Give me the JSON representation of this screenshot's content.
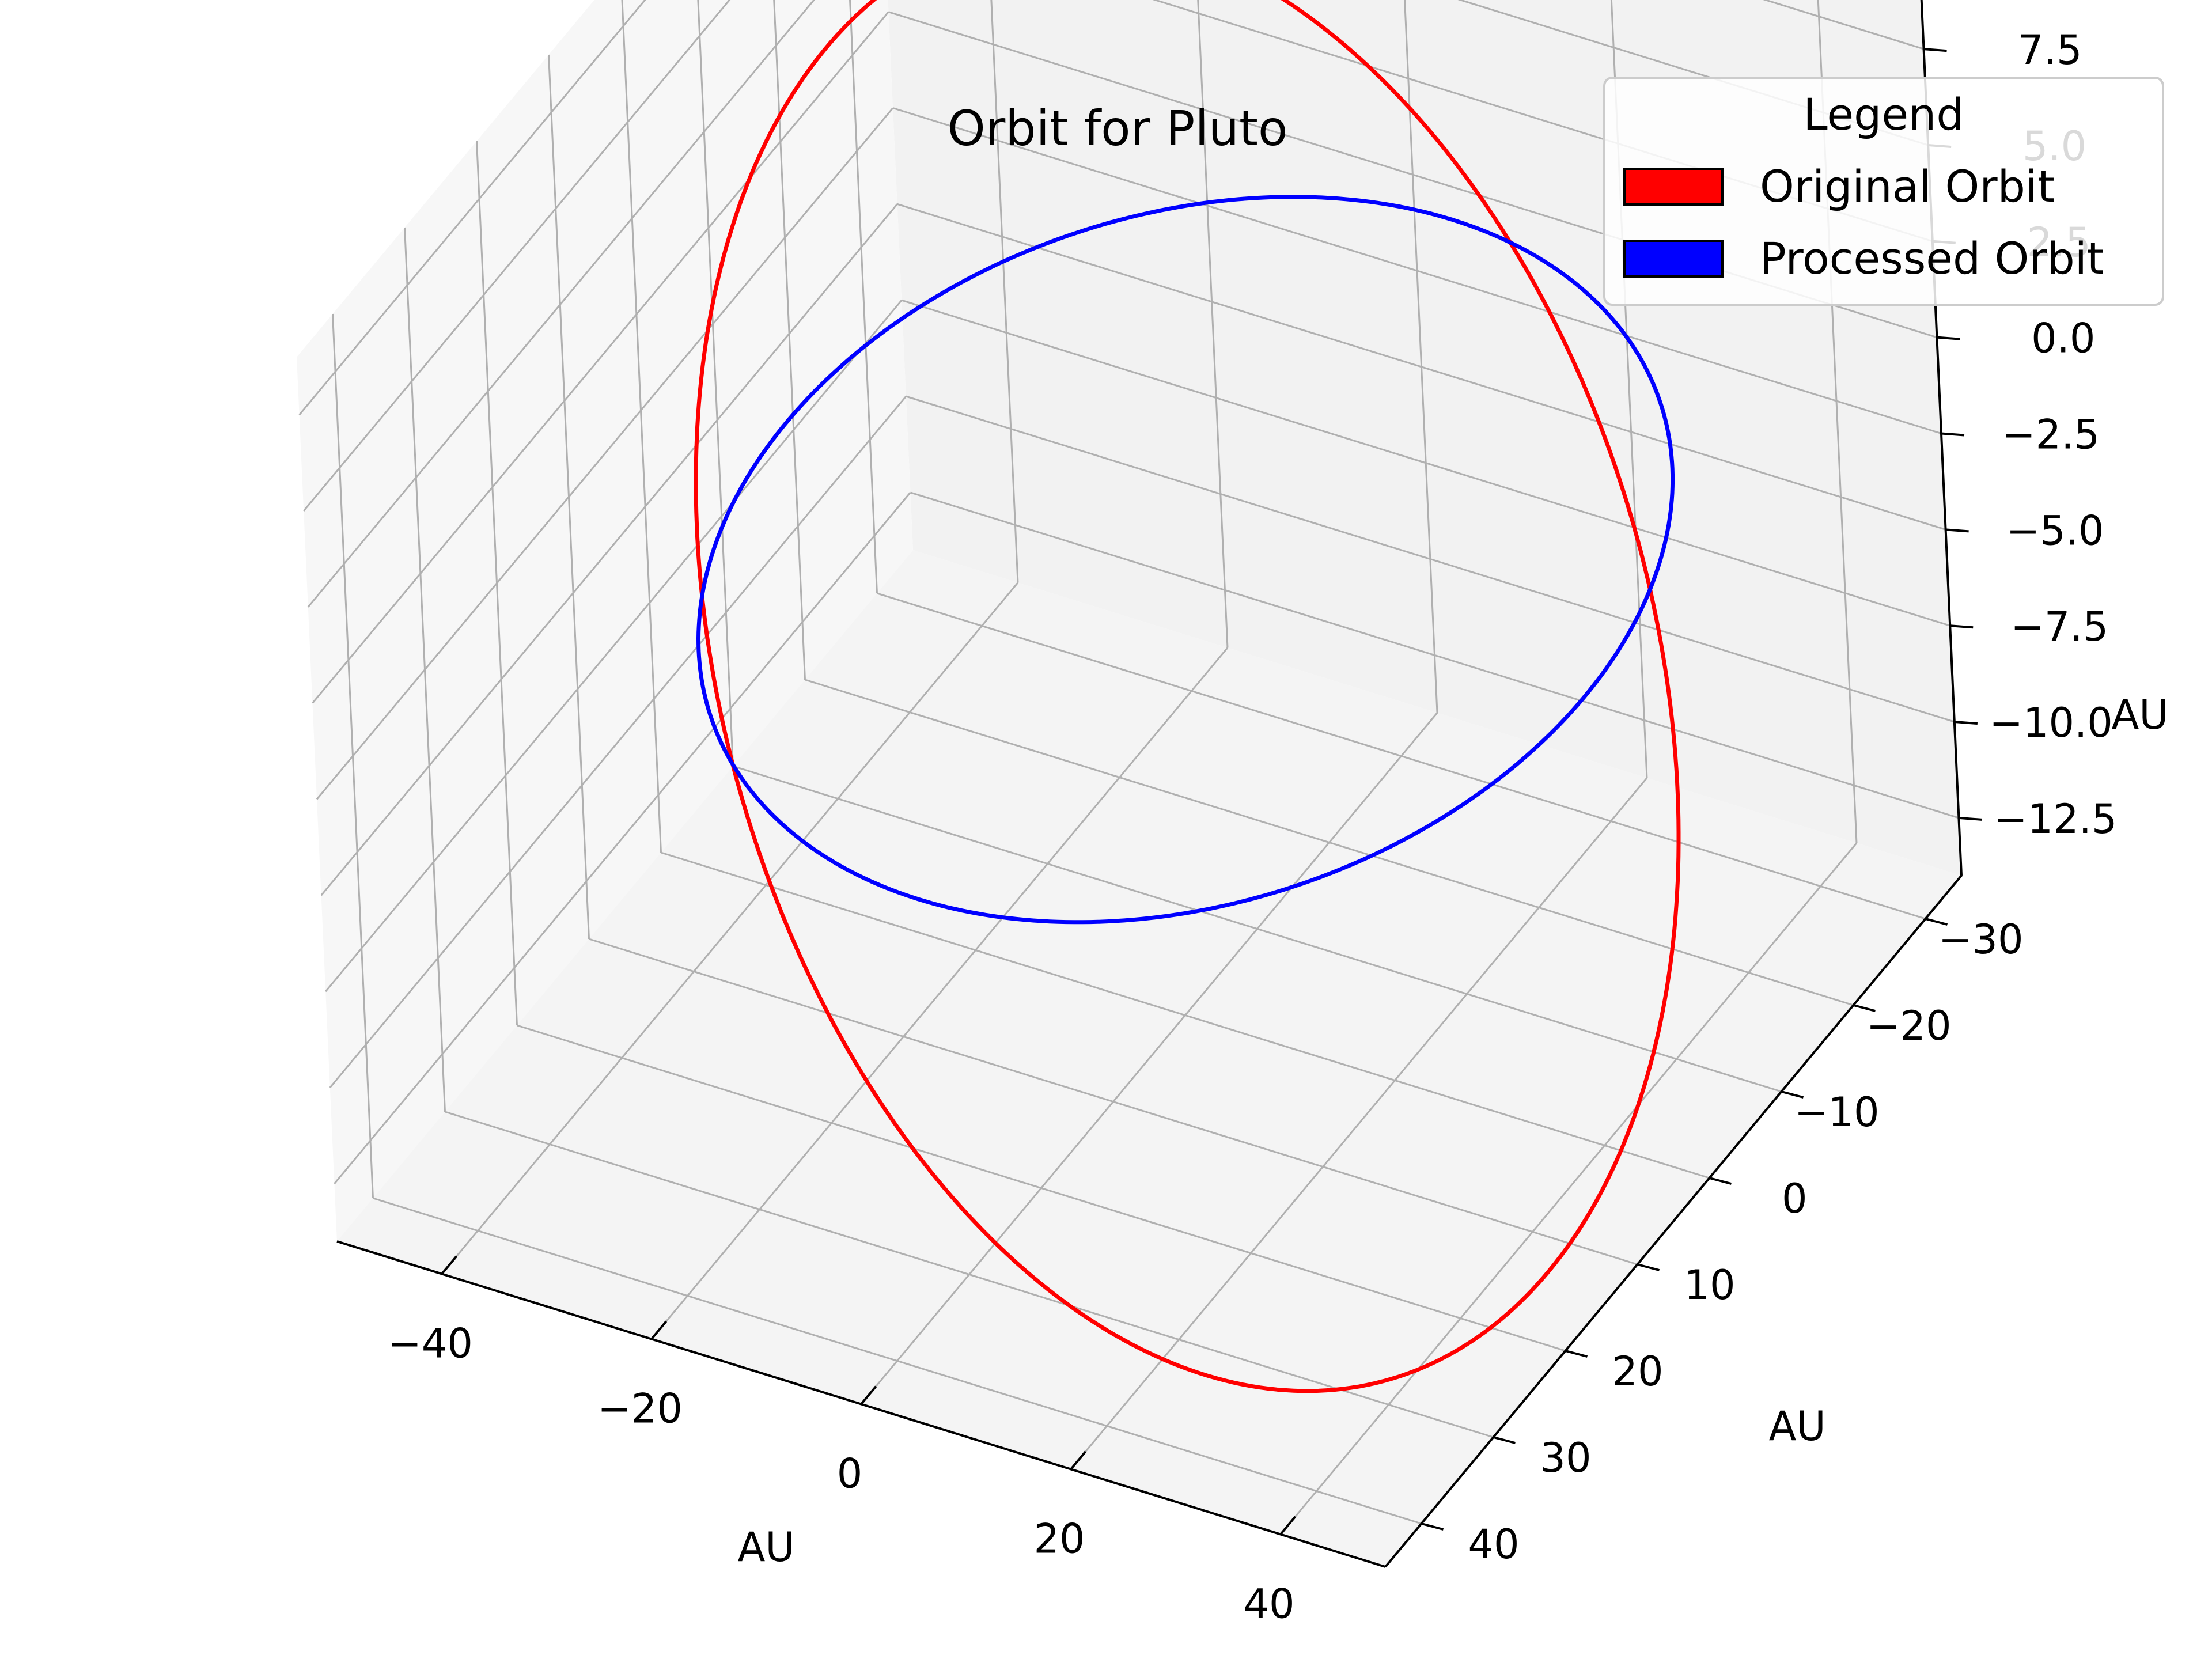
{
  "chart_data": {
    "type": "line",
    "projection": "3d",
    "title": "Orbit for Pluto",
    "xlabel": "AU",
    "ylabel": "AU",
    "zlabel": "AU",
    "xlim": [
      -50,
      50
    ],
    "ylim": [
      -35,
      45
    ],
    "zlim": [
      -14,
      9
    ],
    "x_ticks": [
      -40,
      -20,
      0,
      20,
      40
    ],
    "y_ticks": [
      -30,
      -20,
      -10,
      0,
      10,
      20,
      30,
      40
    ],
    "z_ticks": [
      -12.5,
      -10.0,
      -7.5,
      -5.0,
      -2.5,
      0.0,
      2.5,
      5.0,
      7.5
    ],
    "x_tick_labels": [
      "−40",
      "−20",
      "0",
      "20",
      "40"
    ],
    "y_tick_labels": [
      "−30",
      "−20",
      "−10",
      "0",
      "10",
      "20",
      "30",
      "40"
    ],
    "z_tick_labels": [
      "−12.5",
      "−10.0",
      "−7.5",
      "−5.0",
      "−2.5",
      "0.0",
      "2.5",
      "5.0",
      "7.5"
    ],
    "grid": true,
    "legend": {
      "title": "Legend",
      "placement": "top-right",
      "entries": [
        {
          "label": "Original Orbit",
          "color": "#ff0000"
        },
        {
          "label": "Processed Orbit",
          "color": "#0000ff"
        }
      ]
    },
    "series": [
      {
        "name": "Original Orbit",
        "color": "#ff0000",
        "semi_major_axis": 39.5,
        "eccentricity": 0.25,
        "inclination_deg": 17.2,
        "ascending_node_deg": 110.3,
        "argument_of_perihelion_deg": 113.8
      },
      {
        "name": "Processed Orbit",
        "color": "#0000ff",
        "semi_major_axis": 39.5,
        "eccentricity": 0.25,
        "inclination_deg": 0,
        "ascending_node_deg": 0,
        "argument_of_perihelion_deg": 224.1
      }
    ]
  }
}
